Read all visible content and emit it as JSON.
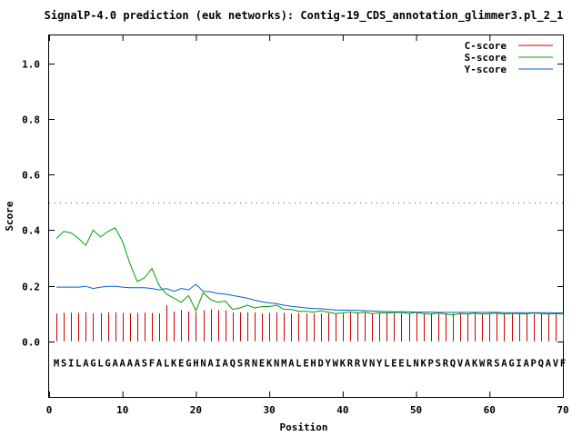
{
  "chart_data": {
    "type": "line",
    "title": "SignalP-4.0 prediction (euk networks): Contig-19_CDS_annotation_glimmer3.pl_2_1",
    "xlabel": "Position",
    "ylabel": "Score",
    "xlim": [
      0,
      70
    ],
    "ylim": [
      -0.2,
      1.1
    ],
    "xticks": [
      "0",
      "10",
      "20",
      "30",
      "40",
      "50",
      "60",
      "70"
    ],
    "yticks": [
      "0.0",
      "0.2",
      "0.4",
      "0.6",
      "0.8",
      "1.0"
    ],
    "grid": false,
    "legend_position": "top-right",
    "threshold": 0.5,
    "sequence": "MSILAGLGAAAASFALKEGHNAIAQSRNEKNMALEHDYWKRRVNYLEELNKPSRQVAKWRSAGIAPQAVF",
    "colors": {
      "C-score": "#cc0000",
      "S-score": "#00a000",
      "Y-score": "#0060d0",
      "threshold": "#cc00cc"
    },
    "series": [
      {
        "name": "C-score",
        "style": "impulses",
        "x": [
          1,
          2,
          3,
          4,
          5,
          6,
          7,
          8,
          9,
          10,
          11,
          12,
          13,
          14,
          15,
          16,
          17,
          18,
          19,
          20,
          21,
          22,
          23,
          24,
          25,
          26,
          27,
          28,
          29,
          30,
          31,
          32,
          33,
          34,
          35,
          36,
          37,
          38,
          39,
          40,
          41,
          42,
          43,
          44,
          45,
          46,
          47,
          48,
          49,
          50,
          51,
          52,
          53,
          54,
          55,
          56,
          57,
          58,
          59,
          60,
          61,
          62,
          63,
          64,
          65,
          66,
          67,
          68,
          69,
          70
        ],
        "values": [
          0.1,
          0.103,
          0.103,
          0.102,
          0.105,
          0.1,
          0.101,
          0.104,
          0.104,
          0.102,
          0.101,
          0.102,
          0.103,
          0.102,
          0.1,
          0.13,
          0.107,
          0.112,
          0.107,
          0.105,
          0.112,
          0.116,
          0.112,
          0.112,
          0.104,
          0.104,
          0.104,
          0.104,
          0.1,
          0.102,
          0.104,
          0.102,
          0.1,
          0.102,
          0.1,
          0.1,
          0.1,
          0.101,
          0.101,
          0.1,
          0.103,
          0.103,
          0.103,
          0.101,
          0.1,
          0.101,
          0.1,
          0.1,
          0.1,
          0.102,
          0.1,
          0.1,
          0.1,
          0.1,
          0.1,
          0.1,
          0.1,
          0.1,
          0.1,
          0.101,
          0.1,
          0.1,
          0.1,
          0.1,
          0.1,
          0.1,
          0.1,
          0.1,
          0.1,
          0.1
        ]
      },
      {
        "name": "S-score",
        "style": "line",
        "x": [
          1,
          2,
          3,
          4,
          5,
          6,
          7,
          8,
          9,
          10,
          11,
          12,
          13,
          14,
          15,
          16,
          17,
          18,
          19,
          20,
          21,
          22,
          23,
          24,
          25,
          26,
          27,
          28,
          29,
          30,
          31,
          32,
          33,
          34,
          35,
          36,
          37,
          38,
          39,
          40,
          41,
          42,
          43,
          44,
          45,
          46,
          47,
          48,
          49,
          50,
          51,
          52,
          53,
          54,
          55,
          56,
          57,
          58,
          59,
          60,
          61,
          62,
          63,
          64,
          65,
          66,
          67,
          68,
          69,
          70
        ],
        "values": [
          0.37,
          0.395,
          0.39,
          0.37,
          0.345,
          0.4,
          0.375,
          0.395,
          0.408,
          0.36,
          0.28,
          0.215,
          0.228,
          0.262,
          0.2,
          0.17,
          0.155,
          0.14,
          0.165,
          0.11,
          0.175,
          0.15,
          0.14,
          0.145,
          0.115,
          0.12,
          0.13,
          0.12,
          0.125,
          0.125,
          0.13,
          0.115,
          0.115,
          0.108,
          0.108,
          0.105,
          0.11,
          0.105,
          0.1,
          0.102,
          0.105,
          0.102,
          0.104,
          0.1,
          0.102,
          0.102,
          0.103,
          0.104,
          0.1,
          0.104,
          0.1,
          0.098,
          0.102,
          0.098,
          0.095,
          0.1,
          0.098,
          0.101,
          0.098,
          0.1,
          0.101,
          0.098,
          0.1,
          0.1,
          0.098,
          0.102,
          0.1,
          0.098,
          0.1,
          0.098
        ]
      },
      {
        "name": "Y-score",
        "style": "line",
        "x": [
          1,
          2,
          3,
          4,
          5,
          6,
          7,
          8,
          9,
          10,
          11,
          12,
          13,
          14,
          15,
          16,
          17,
          18,
          19,
          20,
          21,
          22,
          23,
          24,
          25,
          26,
          27,
          28,
          29,
          30,
          31,
          32,
          33,
          34,
          35,
          36,
          37,
          38,
          39,
          40,
          41,
          42,
          43,
          44,
          45,
          46,
          47,
          48,
          49,
          50,
          51,
          52,
          53,
          54,
          55,
          56,
          57,
          58,
          59,
          60,
          61,
          62,
          63,
          64,
          65,
          66,
          67,
          68,
          69,
          70
        ],
        "values": [
          0.195,
          0.195,
          0.195,
          0.195,
          0.198,
          0.19,
          0.195,
          0.198,
          0.198,
          0.195,
          0.193,
          0.193,
          0.193,
          0.19,
          0.185,
          0.19,
          0.18,
          0.19,
          0.185,
          0.205,
          0.18,
          0.178,
          0.172,
          0.17,
          0.165,
          0.16,
          0.155,
          0.148,
          0.142,
          0.138,
          0.135,
          0.13,
          0.126,
          0.123,
          0.12,
          0.118,
          0.117,
          0.115,
          0.113,
          0.112,
          0.112,
          0.111,
          0.11,
          0.109,
          0.108,
          0.107,
          0.106,
          0.106,
          0.106,
          0.105,
          0.105,
          0.105,
          0.104,
          0.104,
          0.104,
          0.104,
          0.104,
          0.104,
          0.104,
          0.104,
          0.104,
          0.103,
          0.103,
          0.103,
          0.103,
          0.103,
          0.103,
          0.103,
          0.102,
          0.102
        ]
      }
    ]
  }
}
